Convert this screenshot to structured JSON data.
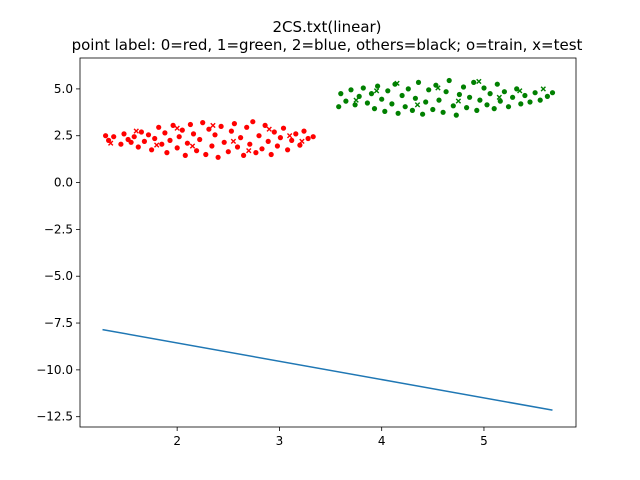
{
  "chart_data": {
    "type": "scatter",
    "title": "2CS.txt(linear)",
    "subtitle": "point label: 0=red, 1=green, 2=blue, others=black; o=train, x=test",
    "xlabel": "",
    "ylabel": "",
    "xlim": [
      1.05,
      5.9
    ],
    "ylim": [
      -13.05,
      6.65
    ],
    "xticks": [
      2,
      3,
      4,
      5
    ],
    "yticks": [
      5.0,
      2.5,
      0.0,
      -2.5,
      -5.0,
      -7.5,
      -10.0,
      -12.5
    ],
    "ytick_labels": [
      "5.0",
      "2.5",
      "0.0",
      "−2.5",
      "−5.0",
      "−7.5",
      "−10.0",
      "−12.5"
    ],
    "grid": false,
    "legend": "none",
    "colors": {
      "class0": "#ff0000",
      "class1": "#008000",
      "line": "#1f77b4"
    },
    "series": [
      {
        "label": 0,
        "color": "#ff0000",
        "train": [
          [
            1.3,
            2.5
          ],
          [
            1.33,
            2.25
          ],
          [
            1.38,
            2.45
          ],
          [
            1.45,
            2.05
          ],
          [
            1.48,
            2.6
          ],
          [
            1.52,
            2.3
          ],
          [
            1.55,
            2.15
          ],
          [
            1.58,
            2.45
          ],
          [
            1.62,
            1.9
          ],
          [
            1.65,
            2.7
          ],
          [
            1.68,
            2.2
          ],
          [
            1.72,
            2.55
          ],
          [
            1.75,
            1.75
          ],
          [
            1.78,
            2.35
          ],
          [
            1.82,
            2.95
          ],
          [
            1.85,
            2.05
          ],
          [
            1.88,
            2.65
          ],
          [
            1.9,
            1.6
          ],
          [
            1.93,
            2.25
          ],
          [
            1.96,
            3.05
          ],
          [
            2.0,
            1.85
          ],
          [
            2.02,
            2.45
          ],
          [
            2.05,
            2.8
          ],
          [
            2.08,
            1.45
          ],
          [
            2.1,
            2.1
          ],
          [
            2.13,
            3.1
          ],
          [
            2.16,
            2.6
          ],
          [
            2.19,
            1.7
          ],
          [
            2.22,
            2.3
          ],
          [
            2.25,
            3.2
          ],
          [
            2.28,
            1.5
          ],
          [
            2.31,
            2.85
          ],
          [
            2.34,
            1.95
          ],
          [
            2.37,
            2.55
          ],
          [
            2.4,
            1.35
          ],
          [
            2.43,
            3.0
          ],
          [
            2.46,
            2.15
          ],
          [
            2.5,
            1.65
          ],
          [
            2.53,
            2.75
          ],
          [
            2.56,
            3.15
          ],
          [
            2.59,
            1.9
          ],
          [
            2.62,
            2.4
          ],
          [
            2.65,
            1.45
          ],
          [
            2.68,
            2.95
          ],
          [
            2.71,
            2.05
          ],
          [
            2.74,
            3.25
          ],
          [
            2.77,
            1.6
          ],
          [
            2.8,
            2.5
          ],
          [
            2.83,
            1.8
          ],
          [
            2.86,
            3.05
          ],
          [
            2.89,
            2.2
          ],
          [
            2.92,
            1.5
          ],
          [
            2.95,
            2.7
          ],
          [
            2.98,
            1.95
          ],
          [
            3.01,
            2.4
          ],
          [
            3.04,
            2.9
          ],
          [
            3.08,
            1.75
          ],
          [
            3.12,
            2.25
          ],
          [
            3.16,
            2.6
          ],
          [
            3.2,
            2.0
          ],
          [
            3.24,
            2.75
          ],
          [
            3.28,
            2.35
          ],
          [
            3.33,
            2.45
          ]
        ],
        "test": [
          [
            1.35,
            2.1
          ],
          [
            1.6,
            2.75
          ],
          [
            1.8,
            2.0
          ],
          [
            2.0,
            2.9
          ],
          [
            2.15,
            1.95
          ],
          [
            2.35,
            3.05
          ],
          [
            2.55,
            2.2
          ],
          [
            2.7,
            1.7
          ],
          [
            2.9,
            2.85
          ],
          [
            3.1,
            2.5
          ],
          [
            3.22,
            2.2
          ]
        ]
      },
      {
        "label": 1,
        "color": "#008000",
        "train": [
          [
            3.58,
            4.05
          ],
          [
            3.6,
            4.75
          ],
          [
            3.65,
            4.35
          ],
          [
            3.7,
            4.95
          ],
          [
            3.74,
            4.15
          ],
          [
            3.78,
            4.6
          ],
          [
            3.82,
            5.05
          ],
          [
            3.86,
            4.25
          ],
          [
            3.9,
            4.75
          ],
          [
            3.93,
            3.95
          ],
          [
            3.96,
            5.15
          ],
          [
            4.0,
            4.45
          ],
          [
            4.03,
            3.8
          ],
          [
            4.06,
            4.9
          ],
          [
            4.1,
            4.2
          ],
          [
            4.13,
            5.25
          ],
          [
            4.16,
            3.7
          ],
          [
            4.2,
            4.65
          ],
          [
            4.23,
            4.05
          ],
          [
            4.26,
            5.0
          ],
          [
            4.3,
            3.85
          ],
          [
            4.33,
            4.5
          ],
          [
            4.36,
            5.35
          ],
          [
            4.4,
            3.65
          ],
          [
            4.43,
            4.3
          ],
          [
            4.46,
            4.95
          ],
          [
            4.5,
            3.9
          ],
          [
            4.53,
            5.2
          ],
          [
            4.56,
            4.4
          ],
          [
            4.6,
            3.75
          ],
          [
            4.63,
            4.85
          ],
          [
            4.66,
            5.45
          ],
          [
            4.7,
            4.1
          ],
          [
            4.73,
            3.6
          ],
          [
            4.76,
            4.7
          ],
          [
            4.8,
            5.1
          ],
          [
            4.83,
            4.0
          ],
          [
            4.86,
            4.55
          ],
          [
            4.9,
            5.35
          ],
          [
            4.93,
            3.85
          ],
          [
            4.96,
            4.4
          ],
          [
            5.0,
            5.05
          ],
          [
            5.03,
            4.15
          ],
          [
            5.06,
            4.75
          ],
          [
            5.1,
            3.95
          ],
          [
            5.13,
            5.25
          ],
          [
            5.16,
            4.35
          ],
          [
            5.2,
            4.85
          ],
          [
            5.24,
            4.05
          ],
          [
            5.28,
            4.55
          ],
          [
            5.32,
            5.0
          ],
          [
            5.36,
            4.2
          ],
          [
            5.4,
            4.65
          ],
          [
            5.45,
            4.3
          ],
          [
            5.5,
            4.8
          ],
          [
            5.55,
            4.4
          ],
          [
            5.62,
            4.6
          ],
          [
            5.67,
            4.8
          ]
        ],
        "test": [
          [
            3.75,
            4.4
          ],
          [
            3.95,
            4.9
          ],
          [
            4.15,
            5.3
          ],
          [
            4.35,
            4.15
          ],
          [
            4.55,
            5.05
          ],
          [
            4.75,
            4.35
          ],
          [
            4.95,
            5.4
          ],
          [
            5.15,
            4.55
          ],
          [
            5.35,
            4.9
          ],
          [
            5.58,
            5.0
          ]
        ]
      }
    ],
    "line": {
      "x": [
        1.27,
        5.67
      ],
      "y": [
        -7.85,
        -12.15
      ]
    }
  }
}
